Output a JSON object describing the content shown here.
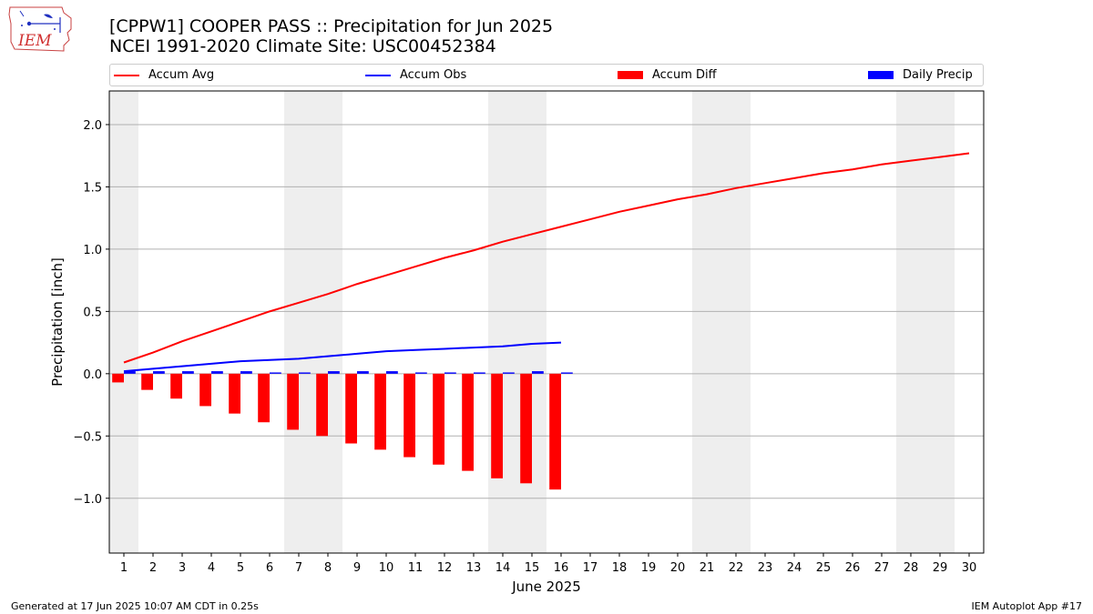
{
  "logo": {
    "text": "IEM"
  },
  "header": {
    "title": "[CPPW1] COOPER PASS :: Precipitation for Jun 2025",
    "subtitle": "NCEI 1991-2020 Climate Site: USC00452384"
  },
  "legend": {
    "items": [
      {
        "label": "Accum Avg",
        "color": "#ff0000",
        "kind": "line"
      },
      {
        "label": "Accum Obs",
        "color": "#0000ff",
        "kind": "line"
      },
      {
        "label": "Accum Diff",
        "color": "#ff0000",
        "kind": "patch"
      },
      {
        "label": "Daily Precip",
        "color": "#0000ff",
        "kind": "patch"
      }
    ]
  },
  "chart_data": {
    "type": "bar",
    "title": "[CPPW1] COOPER PASS :: Precipitation for Jun 2025",
    "xlabel": "June 2025",
    "ylabel": "Precipitation [inch]",
    "ylim": [
      -1.44,
      2.27
    ],
    "xlim": [
      0.5,
      30.5
    ],
    "yticks": [
      -1.0,
      -0.5,
      0.0,
      0.5,
      1.0,
      1.5,
      2.0
    ],
    "ytick_labels": [
      "−1.0",
      "−0.5",
      "0.0",
      "0.5",
      "1.0",
      "1.5",
      "2.0"
    ],
    "categories": [
      "1",
      "2",
      "3",
      "4",
      "5",
      "6",
      "7",
      "8",
      "9",
      "10",
      "11",
      "12",
      "13",
      "14",
      "15",
      "16",
      "17",
      "18",
      "19",
      "20",
      "21",
      "22",
      "23",
      "24",
      "25",
      "26",
      "27",
      "28",
      "29",
      "30"
    ],
    "weekend_days": [
      1,
      7,
      8,
      14,
      15,
      21,
      22,
      28,
      29
    ],
    "grid": "horizontal",
    "series": [
      {
        "name": "Accum Avg",
        "kind": "line",
        "color": "#ff0000",
        "x": [
          1,
          2,
          3,
          4,
          5,
          6,
          7,
          8,
          9,
          10,
          11,
          12,
          13,
          14,
          15,
          16,
          17,
          18,
          19,
          20,
          21,
          22,
          23,
          24,
          25,
          26,
          27,
          28,
          29,
          30
        ],
        "values": [
          0.09,
          0.17,
          0.26,
          0.34,
          0.42,
          0.5,
          0.57,
          0.64,
          0.72,
          0.79,
          0.86,
          0.93,
          0.99,
          1.06,
          1.12,
          1.18,
          1.24,
          1.3,
          1.35,
          1.4,
          1.44,
          1.49,
          1.53,
          1.57,
          1.61,
          1.64,
          1.68,
          1.71,
          1.74,
          1.77
        ]
      },
      {
        "name": "Accum Obs",
        "kind": "line",
        "color": "#0000ff",
        "x": [
          1,
          2,
          3,
          4,
          5,
          6,
          7,
          8,
          9,
          10,
          11,
          12,
          13,
          14,
          15,
          16
        ],
        "values": [
          0.02,
          0.04,
          0.06,
          0.08,
          0.1,
          0.11,
          0.12,
          0.14,
          0.16,
          0.18,
          0.19,
          0.2,
          0.21,
          0.22,
          0.24,
          0.25
        ]
      },
      {
        "name": "Accum Diff",
        "kind": "bar",
        "color": "#ff0000",
        "x": [
          1,
          2,
          3,
          4,
          5,
          6,
          7,
          8,
          9,
          10,
          11,
          12,
          13,
          14,
          15,
          16
        ],
        "values": [
          -0.07,
          -0.13,
          -0.2,
          -0.26,
          -0.32,
          -0.39,
          -0.45,
          -0.5,
          -0.56,
          -0.61,
          -0.67,
          -0.73,
          -0.78,
          -0.84,
          -0.88,
          -0.93
        ]
      },
      {
        "name": "Daily Precip",
        "kind": "bar",
        "color": "#0000ff",
        "x": [
          1,
          2,
          3,
          4,
          5,
          6,
          7,
          8,
          9,
          10,
          11,
          12,
          13,
          14,
          15,
          16
        ],
        "values": [
          0.02,
          0.02,
          0.02,
          0.02,
          0.02,
          0.01,
          0.01,
          0.02,
          0.02,
          0.02,
          0.01,
          0.01,
          0.01,
          0.01,
          0.02,
          0.01
        ]
      }
    ]
  },
  "footer": {
    "left": "Generated at 17 Jun 2025 10:07 AM CDT in 0.25s",
    "right": "IEM Autoplot App #17"
  }
}
